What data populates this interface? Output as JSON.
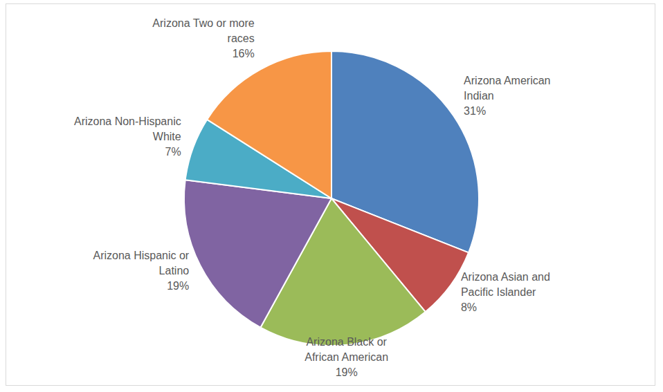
{
  "chart_data": {
    "type": "pie",
    "categories": [
      "Arizona American Indian",
      "Arizona Asian and Pacific Islander",
      "Arizona Black or African American",
      "Arizona Hispanic or Latino",
      "Arizona Non-Hispanic White",
      "Arizona Two or more races"
    ],
    "values": [
      31,
      8,
      19,
      19,
      7,
      16
    ],
    "value_labels": [
      "31%",
      "8%",
      "19%",
      "19%",
      "7%",
      "16%"
    ],
    "colors": [
      "#4f81bd",
      "#c0504d",
      "#9bbb59",
      "#8064a2",
      "#4bacc6",
      "#f79646"
    ],
    "data_labels": true
  }
}
